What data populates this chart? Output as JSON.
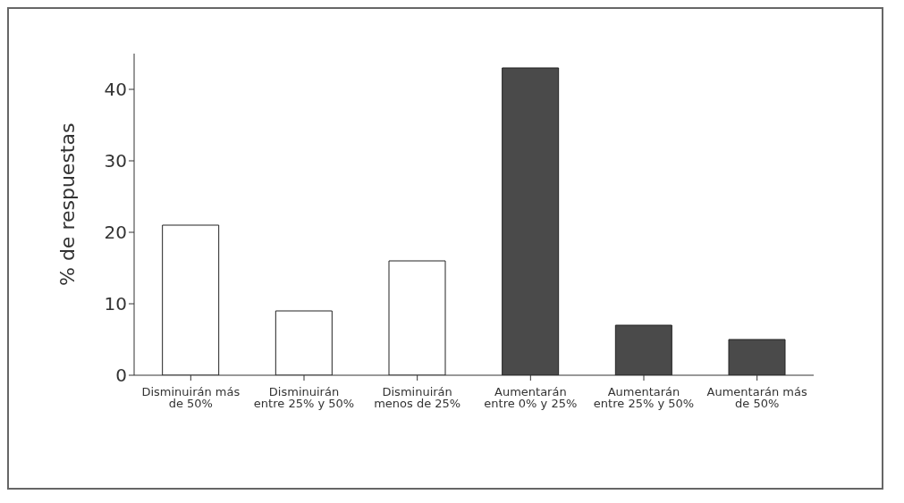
{
  "chart_data": {
    "type": "bar",
    "ylabel": "% de respuestas",
    "categories": [
      "Disminuirán más de 50%",
      "Disminuirán entre 25% y 50%",
      "Disminuirán menos de 25%",
      "Aumentarán entre 0% y 25%",
      "Aumentarán entre 25% y 50%",
      "Aumentarán más de 50%"
    ],
    "values": [
      21,
      9,
      16,
      43,
      7,
      5
    ],
    "colors": [
      "#ffffff",
      "#ffffff",
      "#ffffff",
      "#4a4a4a",
      "#4a4a4a",
      "#4a4a4a"
    ],
    "ylim": [
      0,
      45
    ],
    "yticks": [
      0,
      10,
      20,
      30,
      40
    ],
    "grid": false,
    "legend": false
  }
}
